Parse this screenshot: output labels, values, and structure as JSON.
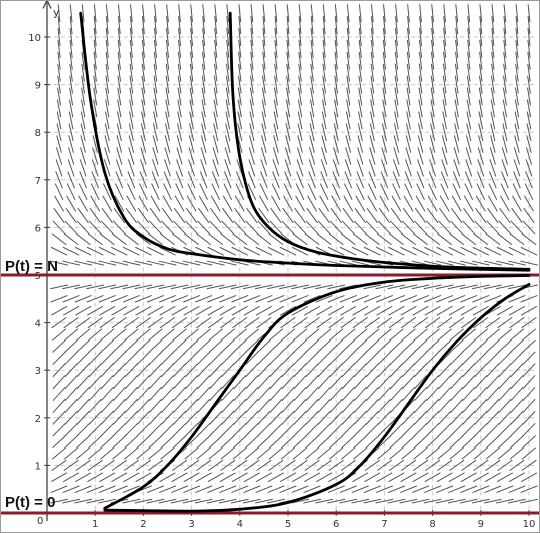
{
  "chart_data": {
    "type": "line",
    "title": "",
    "xlabel": "",
    "ylabel": "y",
    "xlim": [
      0,
      10.15
    ],
    "ylim": [
      0,
      10.6
    ],
    "grid": true,
    "x_ticks": [
      "1",
      "2",
      "3",
      "4",
      "5",
      "6",
      "7",
      "8",
      "9",
      "10"
    ],
    "y_ticks": [
      "1",
      "2",
      "3",
      "4",
      "5",
      "6",
      "7",
      "8",
      "9",
      "10"
    ],
    "origin_label": "0",
    "slope_field": {
      "equation": "logistic",
      "N": 5,
      "r": 0.9
    },
    "equilibria": [
      {
        "label": "P(t) = N",
        "y": 5,
        "color": "#8b1a2b"
      },
      {
        "label": "P(t) = 0",
        "y": 0,
        "color": "#8b1a2b"
      }
    ],
    "series": [
      {
        "x": [
          0.7,
          0.9,
          1.2,
          1.6,
          2.0,
          2.5,
          3.0,
          4.0,
          5.0,
          6.0,
          8.0,
          10.0
        ],
        "y": [
          10.5,
          8.7,
          7.15,
          6.2,
          5.8,
          5.55,
          5.45,
          5.32,
          5.25,
          5.2,
          5.14,
          5.1
        ]
      },
      {
        "x": [
          3.8,
          3.85,
          3.95,
          4.1,
          4.3,
          4.6,
          5.0,
          5.6,
          6.5,
          7.5,
          8.5,
          10.0
        ],
        "y": [
          10.5,
          8.9,
          7.8,
          7.0,
          6.4,
          6.0,
          5.7,
          5.48,
          5.32,
          5.22,
          5.16,
          5.12
        ]
      },
      {
        "x": [
          1.2,
          2.0,
          2.5,
          3.0,
          3.5,
          4.0,
          4.5,
          5.0,
          6.0,
          7.0,
          8.0,
          9.0,
          10.0
        ],
        "y": [
          0.1,
          0.55,
          1.0,
          1.6,
          2.3,
          3.0,
          3.7,
          4.2,
          4.65,
          4.85,
          4.93,
          4.97,
          4.99
        ]
      },
      {
        "x": [
          1.2,
          2.0,
          3.0,
          4.0,
          5.0,
          6.0,
          6.5,
          7.0,
          7.5,
          8.0,
          8.5,
          9.0,
          9.5,
          10.0
        ],
        "y": [
          0.06,
          0.05,
          0.04,
          0.08,
          0.22,
          0.6,
          1.0,
          1.6,
          2.3,
          3.0,
          3.6,
          4.1,
          4.5,
          4.8
        ]
      }
    ],
    "styles": {
      "curve_color": "#000000",
      "field_color": "#555555",
      "grid_color": "#c8c8c8"
    }
  }
}
